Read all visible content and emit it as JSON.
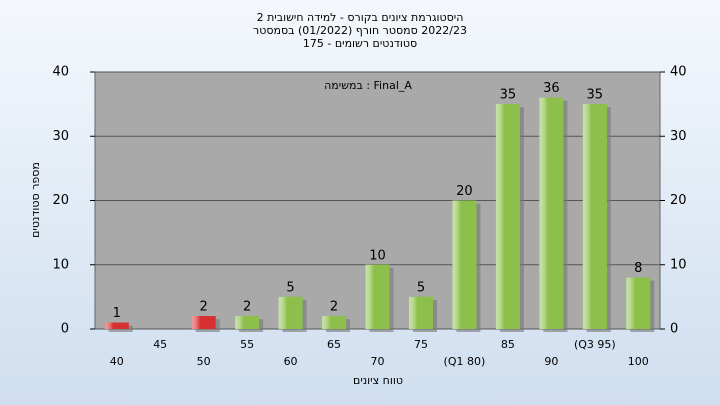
{
  "chart_data": {
    "type": "bar",
    "title_lines": [
      "היסטוגרמת ציונים בקורס - למידה חישובית 2",
      "2022/23 סמסטר חורף (01/2022) בסמסטר",
      "סטודנטים רשומים - 175"
    ],
    "annotation": "במשימה : Final_A",
    "y_label": "מספר סטודנטים",
    "x_label": "טווח ציונים",
    "categories": [
      "40",
      "45",
      "50",
      "55",
      "60",
      "65",
      "70",
      "75",
      "(Q1 80)",
      "85",
      "90",
      "(Q3 95)",
      "100"
    ],
    "values": [
      1,
      0,
      2,
      2,
      5,
      2,
      10,
      5,
      20,
      35,
      36,
      35,
      8
    ],
    "colors": [
      "#d83030",
      "#d83030",
      "#d83030",
      "#8cc04a",
      "#8cc04a",
      "#8cc04a",
      "#8cc04a",
      "#8cc04a",
      "#8cc04a",
      "#8cc04a",
      "#8cc04a",
      "#8cc04a",
      "#8cc04a"
    ],
    "ylim": [
      0,
      40
    ],
    "yticks": [
      0,
      10,
      20,
      30,
      40
    ],
    "y2lim": [
      0,
      40
    ],
    "y2ticks": [
      0,
      10,
      20,
      30,
      40
    ],
    "grid": true
  }
}
